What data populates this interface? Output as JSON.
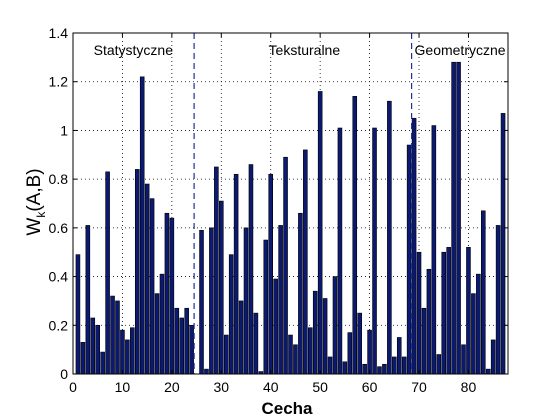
{
  "chart_data": {
    "type": "bar",
    "title": "",
    "xlabel": "Cecha",
    "ylabel": "W",
    "ylabel_subscript": "k",
    "ylabel_suffix": "(A,B)",
    "xlim": [
      0,
      88
    ],
    "ylim": [
      0,
      1.4
    ],
    "xticks": [
      0,
      10,
      20,
      30,
      40,
      50,
      60,
      70,
      80
    ],
    "yticks": [
      0,
      0.2,
      0.4,
      0.6,
      0.8,
      1,
      1.2,
      1.4
    ],
    "ytick_labels": [
      "0",
      "0.2",
      "0.4",
      "0.6",
      "0.8",
      "1",
      "1.2",
      "1.4"
    ],
    "grid": true,
    "bar_color": "#0b1a70",
    "bar_edge_color": "#000000",
    "divider_color": "#1f2f9a",
    "dividers": [
      24.5,
      68.5
    ],
    "sections": [
      {
        "label": "Statystyczne",
        "x": 12.2
      },
      {
        "label": "Teksturalne",
        "x": 46.8
      },
      {
        "label": "Geometryczne",
        "x": 78.3
      }
    ],
    "x": [
      1,
      2,
      3,
      4,
      5,
      6,
      7,
      8,
      9,
      10,
      11,
      12,
      13,
      14,
      15,
      16,
      17,
      18,
      19,
      20,
      21,
      22,
      23,
      24,
      25,
      26,
      27,
      28,
      29,
      30,
      31,
      32,
      33,
      34,
      35,
      36,
      37,
      38,
      39,
      40,
      41,
      42,
      43,
      44,
      45,
      46,
      47,
      48,
      49,
      50,
      51,
      52,
      53,
      54,
      55,
      56,
      57,
      58,
      59,
      60,
      61,
      62,
      63,
      64,
      65,
      66,
      67,
      68,
      69,
      70,
      71,
      72,
      73,
      74,
      75,
      76,
      77,
      78,
      79,
      80,
      81,
      82,
      83,
      84,
      85,
      86,
      87,
      88
    ],
    "values": [
      0.49,
      0.13,
      0.61,
      0.23,
      0.2,
      0.09,
      0.83,
      0.32,
      0.3,
      0.18,
      0.14,
      0.19,
      0.84,
      1.22,
      0.78,
      0.72,
      0.33,
      0.41,
      0.66,
      0.64,
      0.27,
      0.23,
      0.27,
      0.2,
      0.0,
      0.59,
      0.02,
      0.6,
      0.85,
      0.71,
      0.16,
      0.49,
      0.82,
      0.3,
      0.6,
      0.86,
      0.25,
      0.01,
      0.55,
      0.82,
      0.39,
      0.61,
      0.89,
      0.16,
      0.12,
      0.66,
      0.92,
      0.19,
      0.34,
      1.16,
      0.31,
      0.07,
      0.4,
      1.01,
      0.05,
      0.17,
      1.14,
      0.25,
      0.04,
      0.18,
      1.01,
      0.03,
      0.04,
      1.12,
      0.07,
      0.15,
      0.07,
      0.94,
      1.05,
      0.5,
      0.27,
      0.43,
      1.02,
      0.08,
      0.5,
      0.52,
      1.28,
      1.28,
      0.12,
      0.52,
      0.33,
      0.41,
      0.67,
      0.02,
      0.14,
      0.61,
      1.07,
      0.0
    ]
  }
}
